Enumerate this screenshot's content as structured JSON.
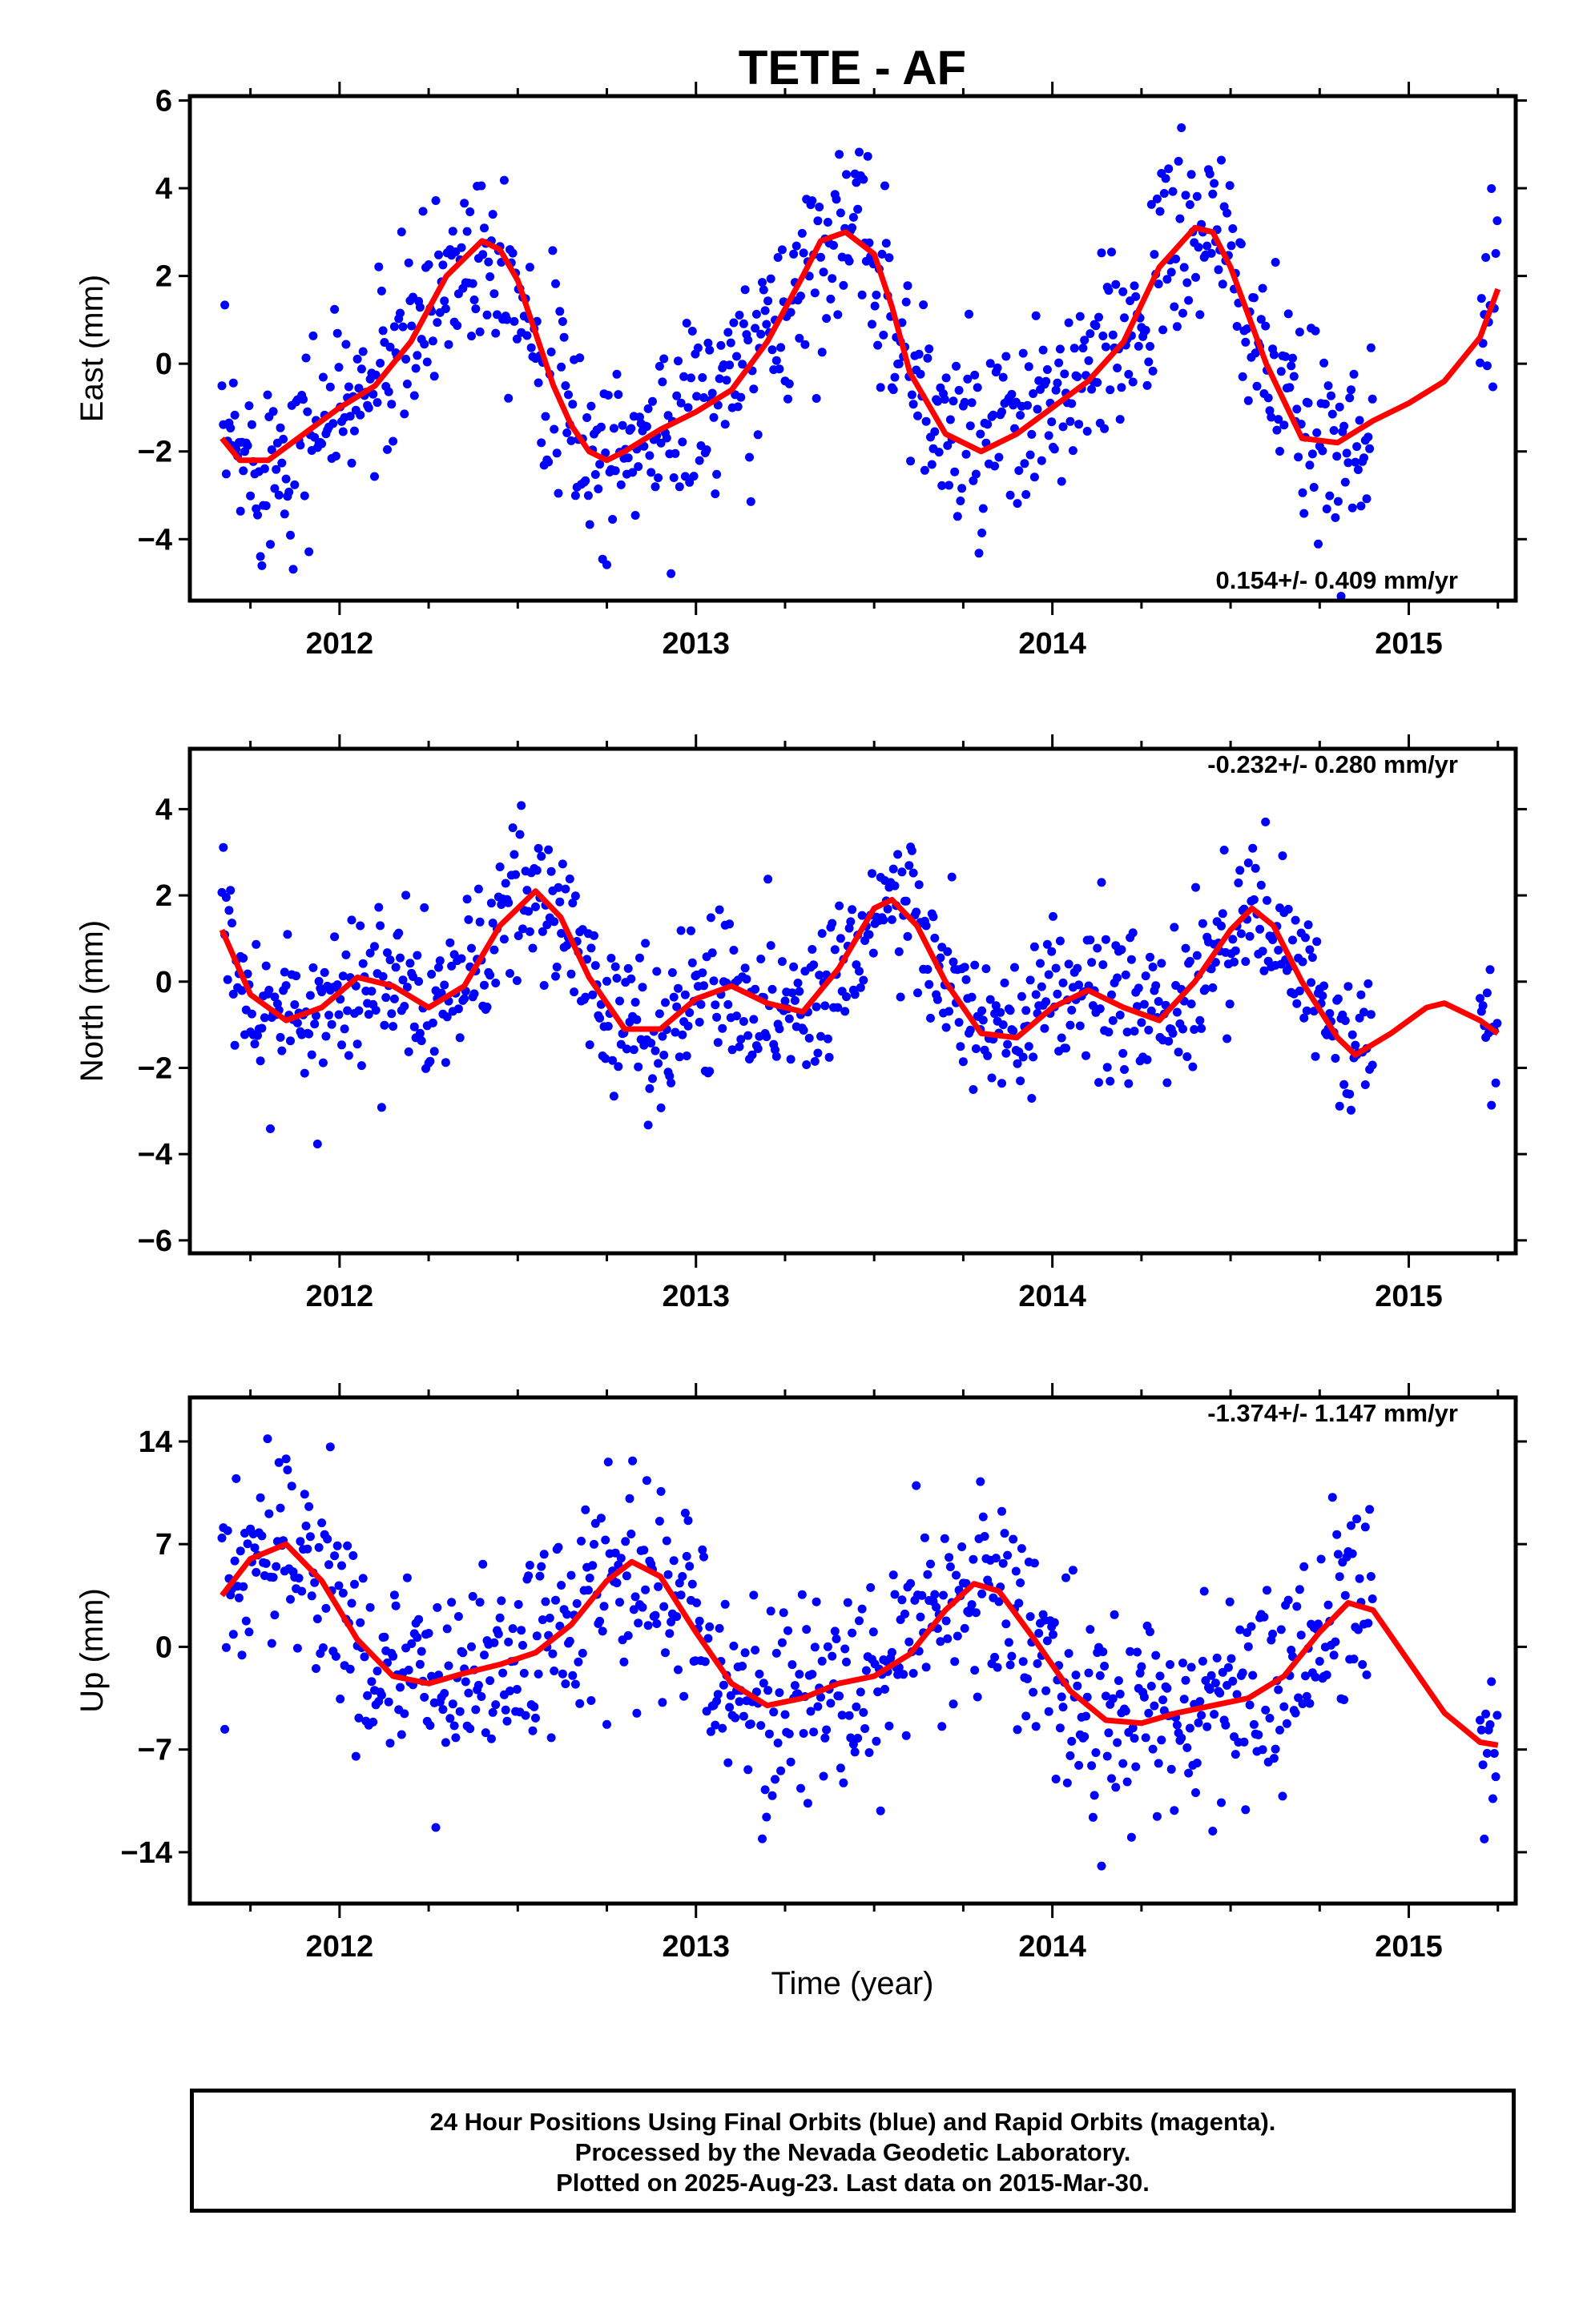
{
  "chart_data": [
    {
      "type": "scatter",
      "title": "TETE - AF",
      "ylabel": "East (mm)",
      "xlabel": "",
      "xlim": [
        2011.58,
        2015.3
      ],
      "ylim": [
        -5.4,
        6.1
      ],
      "yticks": [
        -4,
        -2,
        0,
        2,
        4,
        6
      ],
      "xticks": [
        2012,
        2013,
        2014,
        2015
      ],
      "rate_label": "0.154+/- 0.409 mm/yr",
      "colors": {
        "points": "#0000ff",
        "model": "#ff0000"
      },
      "model_curve": {
        "x": [
          2011.67,
          2011.72,
          2011.8,
          2011.9,
          2012.0,
          2012.1,
          2012.2,
          2012.3,
          2012.4,
          2012.45,
          2012.5,
          2012.55,
          2012.6,
          2012.65,
          2012.7,
          2012.75,
          2012.8,
          2012.9,
          2013.0,
          2013.1,
          2013.2,
          2013.3,
          2013.35,
          2013.42,
          2013.5,
          2013.55,
          2013.6,
          2013.7,
          2013.8,
          2013.9,
          2014.0,
          2014.1,
          2014.2,
          2014.3,
          2014.4,
          2014.45,
          2014.5,
          2014.6,
          2014.7,
          2014.8,
          2014.9,
          2015.0,
          2015.1,
          2015.2,
          2015.25
        ],
        "y": [
          -1.7,
          -2.2,
          -2.2,
          -1.6,
          -1.0,
          -0.5,
          0.5,
          2.0,
          2.8,
          2.6,
          1.9,
          0.7,
          -0.5,
          -1.4,
          -2.0,
          -2.2,
          -2.0,
          -1.5,
          -1.1,
          -0.6,
          0.5,
          2.0,
          2.8,
          3.0,
          2.5,
          1.3,
          -0.2,
          -1.6,
          -2.0,
          -1.6,
          -1.0,
          -0.4,
          0.5,
          2.2,
          3.1,
          3.0,
          2.2,
          0.0,
          -1.7,
          -1.8,
          -1.3,
          -0.9,
          -0.4,
          0.6,
          1.7
        ]
      },
      "observations": {
        "start": 2011.67,
        "end": 2014.9,
        "interval": 0.004,
        "scatter": 1.1,
        "extra": [
          {
            "start": 2015.2,
            "end": 2015.25,
            "interval": 0.004
          }
        ]
      }
    },
    {
      "type": "scatter",
      "title": "",
      "ylabel": "North (mm)",
      "xlabel": "",
      "xlim": [
        2011.58,
        2015.3
      ],
      "ylim": [
        -6.3,
        5.4
      ],
      "yticks": [
        -6,
        -4,
        -2,
        0,
        2,
        4
      ],
      "xticks": [
        2012,
        2013,
        2014,
        2015
      ],
      "rate_label": "-0.232+/- 0.280 mm/yr",
      "colors": {
        "points": "#0000ff",
        "model": "#ff0000"
      },
      "model_curve": {
        "x": [
          2011.67,
          2011.75,
          2011.85,
          2011.95,
          2012.05,
          2012.15,
          2012.25,
          2012.35,
          2012.45,
          2012.55,
          2012.62,
          2012.7,
          2012.8,
          2012.9,
          2013.0,
          2013.1,
          2013.2,
          2013.3,
          2013.4,
          2013.5,
          2013.55,
          2013.62,
          2013.7,
          2013.8,
          2013.9,
          2014.0,
          2014.1,
          2014.2,
          2014.3,
          2014.4,
          2014.5,
          2014.56,
          2014.62,
          2014.7,
          2014.8,
          2014.85,
          2014.95,
          2015.05,
          2015.1,
          2015.2,
          2015.25
        ],
        "y": [
          1.2,
          -0.3,
          -0.9,
          -0.6,
          0.1,
          -0.1,
          -0.6,
          -0.1,
          1.3,
          2.1,
          1.5,
          0.1,
          -1.1,
          -1.1,
          -0.4,
          -0.1,
          -0.5,
          -0.7,
          0.3,
          1.7,
          1.9,
          1.3,
          0.0,
          -1.2,
          -1.3,
          -0.6,
          -0.2,
          -0.6,
          -0.9,
          0.0,
          1.2,
          1.7,
          1.3,
          0.0,
          -1.3,
          -1.7,
          -1.2,
          -0.6,
          -0.5,
          -0.9,
          -1.2
        ]
      },
      "observations": {
        "start": 2011.67,
        "end": 2014.9,
        "interval": 0.004,
        "scatter": 0.9,
        "extra": [
          {
            "start": 2015.2,
            "end": 2015.25,
            "interval": 0.004
          }
        ]
      }
    },
    {
      "type": "scatter",
      "title": "",
      "ylabel": "Up (mm)",
      "xlabel": "Time (year)",
      "xlim": [
        2011.58,
        2015.3
      ],
      "ylim": [
        -17.5,
        17
      ],
      "yticks": [
        -14,
        -7,
        0,
        7,
        14
      ],
      "xticks": [
        2012,
        2013,
        2014,
        2015
      ],
      "rate_label": "-1.374+/- 1.147 mm/yr",
      "colors": {
        "points": "#0000ff",
        "model": "#ff0000"
      },
      "model_curve": {
        "x": [
          2011.67,
          2011.75,
          2011.85,
          2011.95,
          2012.05,
          2012.15,
          2012.25,
          2012.35,
          2012.45,
          2012.55,
          2012.65,
          2012.75,
          2012.82,
          2012.9,
          2013.0,
          2013.1,
          2013.2,
          2013.3,
          2013.4,
          2013.5,
          2013.6,
          2013.7,
          2013.78,
          2013.85,
          2013.95,
          2014.05,
          2014.15,
          2014.25,
          2014.35,
          2014.45,
          2014.55,
          2014.65,
          2014.75,
          2014.83,
          2014.9,
          2015.0,
          2015.1,
          2015.2,
          2015.25
        ],
        "y": [
          3.5,
          6.0,
          7.0,
          4.5,
          0.5,
          -2.0,
          -2.5,
          -1.8,
          -1.2,
          -0.4,
          1.5,
          4.5,
          5.8,
          4.8,
          1.0,
          -2.5,
          -4.0,
          -3.5,
          -2.5,
          -2.0,
          -0.5,
          2.5,
          4.3,
          3.8,
          0.5,
          -3.0,
          -5.0,
          -5.2,
          -4.5,
          -4.0,
          -3.5,
          -2.0,
          1.0,
          3.0,
          2.5,
          -1.0,
          -4.5,
          -6.5,
          -6.7
        ]
      },
      "observations": {
        "start": 2011.67,
        "end": 2014.9,
        "interval": 0.004,
        "scatter": 3.5,
        "extra": [
          {
            "start": 2015.2,
            "end": 2015.25,
            "interval": 0.004
          }
        ]
      }
    }
  ],
  "footer": {
    "line1": "24 Hour Positions Using Final Orbits (blue) and Rapid Orbits (magenta).",
    "line2": "Processed by the Nevada Geodetic Laboratory.",
    "line3": "Plotted on 2025-Aug-23. Last data on 2015-Mar-30."
  }
}
